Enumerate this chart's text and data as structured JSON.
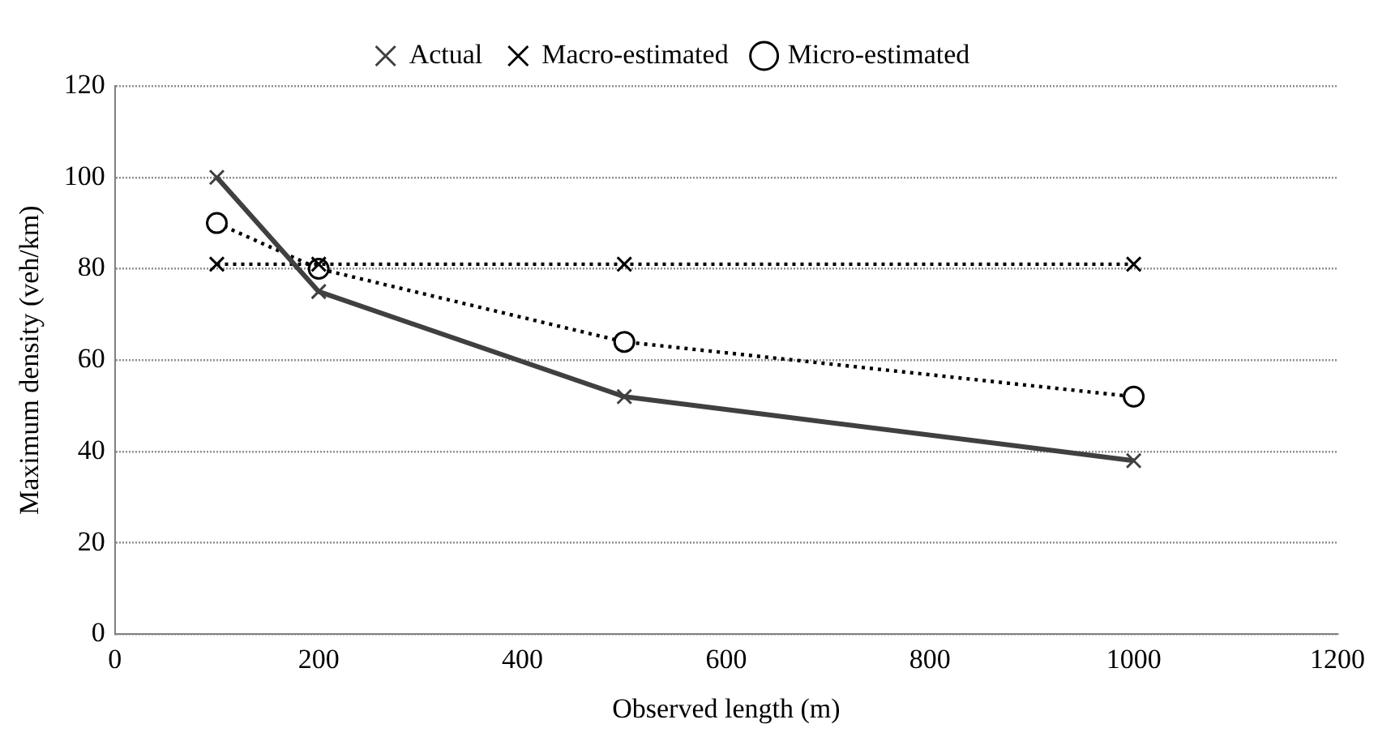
{
  "chart_data": {
    "type": "line",
    "xlabel": "Observed length (m)",
    "ylabel": "Maximum density (veh/km)",
    "x": [
      100,
      200,
      500,
      1000
    ],
    "series": [
      {
        "name": "Actual",
        "color": "#404040",
        "values": [
          100,
          75,
          52,
          38
        ],
        "marker": "cross",
        "line_style": "solid"
      },
      {
        "name": "Macro-estimated",
        "color": "#000000",
        "values": [
          81,
          81,
          81,
          81
        ],
        "marker": "cross",
        "line_style": "dotted"
      },
      {
        "name": "Micro-estimated",
        "color": "#000000",
        "values": [
          90,
          80,
          64,
          52
        ],
        "marker": "circle",
        "line_style": "dotted"
      }
    ],
    "xlim": [
      0,
      1200
    ],
    "xticks": [
      0,
      200,
      400,
      600,
      800,
      1000,
      1200
    ],
    "ylim": [
      0,
      120
    ],
    "yticks": [
      0,
      20,
      40,
      60,
      80,
      100,
      120
    ],
    "grid": "y",
    "legend": "top"
  }
}
